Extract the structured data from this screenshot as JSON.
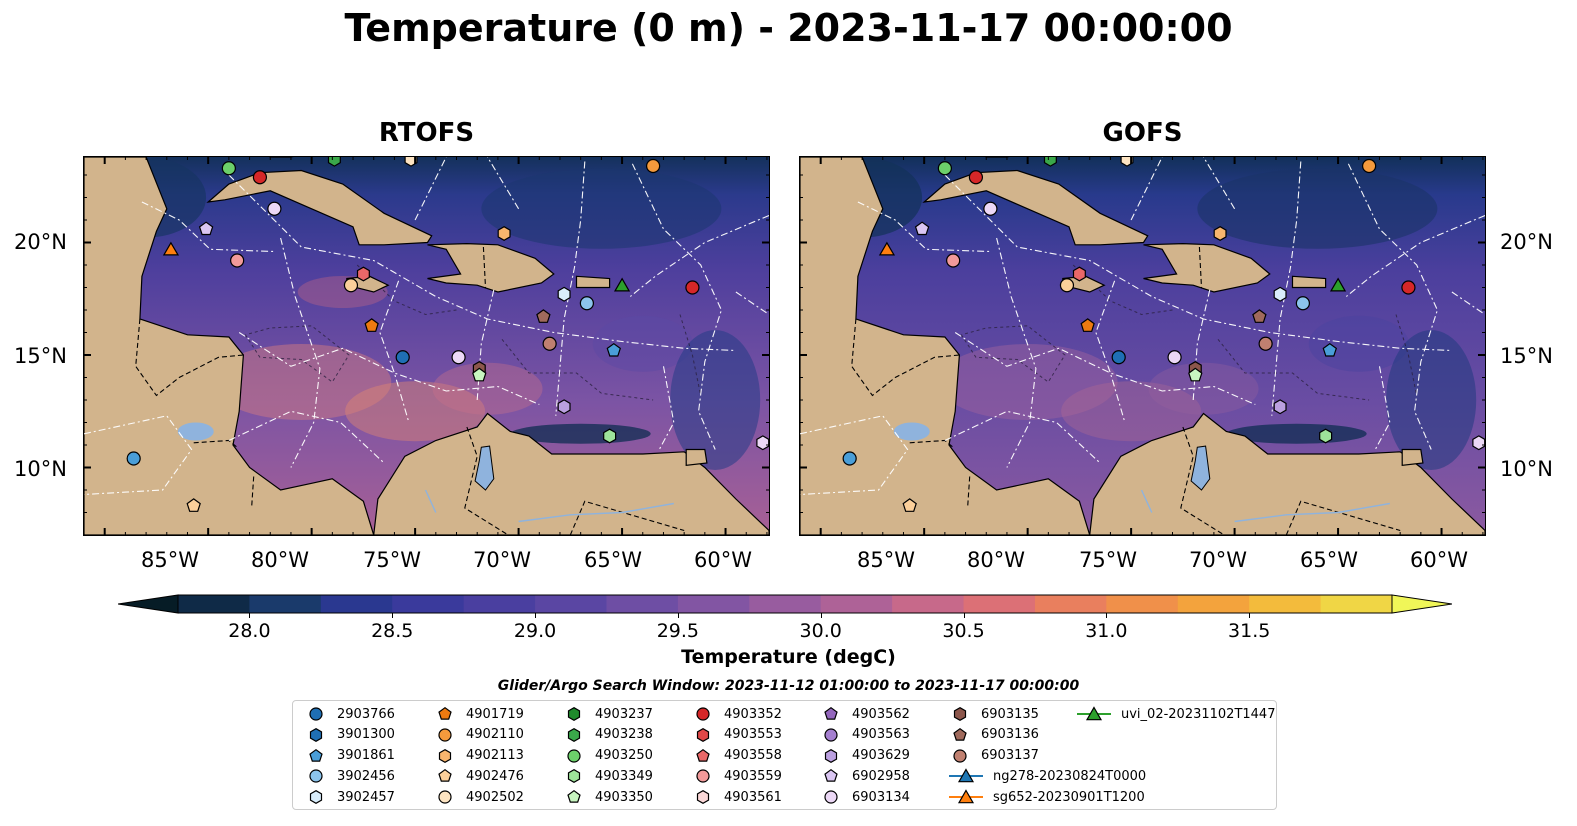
{
  "title": "Temperature (0 m) - 2023-11-17 00:00:00",
  "panels": [
    {
      "title": "RTOFS",
      "variant": "warm"
    },
    {
      "title": "GOFS",
      "variant": "cool"
    }
  ],
  "lat_ticks": [
    "20°N",
    "15°N",
    "10°N"
  ],
  "lon_ticks": [
    "85°W",
    "80°W",
    "75°W",
    "70°W",
    "65°W",
    "60°W"
  ],
  "colorbar": {
    "label": "Temperature (degC)",
    "ticks": [
      "28.0",
      "28.5",
      "29.0",
      "29.5",
      "30.0",
      "30.5",
      "31.0",
      "31.5"
    ],
    "colors": [
      "#0f2a47",
      "#1a3a6b",
      "#2a3890",
      "#3a3a9c",
      "#4a3fa0",
      "#5a46a3",
      "#6e4ea4",
      "#8255a3",
      "#985c9f",
      "#ae6297",
      "#c7698a",
      "#dc7076",
      "#e97f5e",
      "#f0904a",
      "#f3a33d",
      "#f3bb3c",
      "#f0d645"
    ],
    "under_color": "#061c26",
    "over_color": "#f0f658"
  },
  "search_window": "Glider/Argo Search Window: 2023-11-12 01:00:00 to 2023-11-17 00:00:00",
  "colors": {
    "land": "#d2b48c",
    "ocean_mid": "#5e4a9e",
    "ocean_dark": "#13315a",
    "lake": "#8fb3dd"
  },
  "legend": [
    {
      "label": "2903766",
      "shape": "circle",
      "color": "#1f6fb4"
    },
    {
      "label": "3901300",
      "shape": "hexagon",
      "color": "#1f6fb4"
    },
    {
      "label": "3901861",
      "shape": "pentagon",
      "color": "#4a9ed8"
    },
    {
      "label": "3902456",
      "shape": "circle",
      "color": "#8cc4ec"
    },
    {
      "label": "3902457",
      "shape": "hexagon",
      "color": "#d9edfb"
    },
    {
      "label": "4901719",
      "shape": "pentagon",
      "color": "#ee7a10"
    },
    {
      "label": "4902110",
      "shape": "circle",
      "color": "#f59a3c"
    },
    {
      "label": "4902113",
      "shape": "hexagon",
      "color": "#f8b56e"
    },
    {
      "label": "4902476",
      "shape": "pentagon",
      "color": "#fbcf9a"
    },
    {
      "label": "4902502",
      "shape": "circle",
      "color": "#fde4c2"
    },
    {
      "label": "4903237",
      "shape": "hexagon",
      "color": "#1f8a2c"
    },
    {
      "label": "4903238",
      "shape": "hexagon",
      "color": "#3aa84a"
    },
    {
      "label": "4903250",
      "shape": "circle",
      "color": "#6cd06a"
    },
    {
      "label": "4903349",
      "shape": "hexagon",
      "color": "#9ee39a"
    },
    {
      "label": "4903350",
      "shape": "pentagon",
      "color": "#c8f5c0"
    },
    {
      "label": "4903352",
      "shape": "circle",
      "color": "#d62728"
    },
    {
      "label": "4903553",
      "shape": "hexagon",
      "color": "#e04848"
    },
    {
      "label": "4903558",
      "shape": "pentagon",
      "color": "#ea6868"
    },
    {
      "label": "4903559",
      "shape": "circle",
      "color": "#f29a9a"
    },
    {
      "label": "4903561",
      "shape": "hexagon",
      "color": "#fbd8d8"
    },
    {
      "label": "4903562",
      "shape": "pentagon",
      "color": "#9467bd"
    },
    {
      "label": "4903563",
      "shape": "circle",
      "color": "#a57fd0"
    },
    {
      "label": "4903629",
      "shape": "hexagon",
      "color": "#bba0e0"
    },
    {
      "label": "6902958",
      "shape": "pentagon",
      "color": "#dac6f2"
    },
    {
      "label": "6903134",
      "shape": "circle",
      "color": "#ecd8f6"
    },
    {
      "label": "6903135",
      "shape": "hexagon",
      "color": "#8c564b"
    },
    {
      "label": "6903136",
      "shape": "pentagon",
      "color": "#a06a5c"
    },
    {
      "label": "6903137",
      "shape": "circle",
      "color": "#c08070"
    },
    {
      "label": "ng278-20230824T0000",
      "shape": "triangle",
      "color": "#1f77b4",
      "line": true
    },
    {
      "label": "sg652-20230901T1200",
      "shape": "triangle",
      "color": "#ff7f0e",
      "line": true
    },
    {
      "label": "uvi_02-20231102T1447",
      "shape": "triangle",
      "color": "#2ca02c",
      "line": true
    }
  ],
  "map_markers": [
    {
      "lon": -84.0,
      "lat": 23.3,
      "shape": "circle",
      "color": "#6cd06a"
    },
    {
      "lon": -82.5,
      "lat": 22.9,
      "shape": "circle",
      "color": "#d62728"
    },
    {
      "lon": -78.9,
      "lat": 23.7,
      "shape": "hexagon",
      "color": "#3aa84a"
    },
    {
      "lon": -75.2,
      "lat": 23.7,
      "shape": "hexagon",
      "color": "#fde4c2"
    },
    {
      "lon": -63.5,
      "lat": 23.4,
      "shape": "circle",
      "color": "#f59a3c"
    },
    {
      "lon": -86.8,
      "lat": 19.7,
      "shape": "triangle",
      "color": "#ff7f0e"
    },
    {
      "lon": -85.1,
      "lat": 20.6,
      "shape": "pentagon",
      "color": "#dac6f2"
    },
    {
      "lon": -83.6,
      "lat": 19.2,
      "shape": "circle",
      "color": "#f29a9a"
    },
    {
      "lon": -81.8,
      "lat": 21.5,
      "shape": "circle",
      "color": "#ecd8f6"
    },
    {
      "lon": -78.1,
      "lat": 18.1,
      "shape": "circle",
      "color": "#fbcf9a"
    },
    {
      "lon": -77.5,
      "lat": 18.6,
      "shape": "hexagon",
      "color": "#ea6868"
    },
    {
      "lon": -77.1,
      "lat": 16.3,
      "shape": "pentagon",
      "color": "#ee7a10"
    },
    {
      "lon": -75.6,
      "lat": 14.9,
      "shape": "circle",
      "color": "#1f6fb4"
    },
    {
      "lon": -72.9,
      "lat": 14.9,
      "shape": "circle",
      "color": "#ecd8f6"
    },
    {
      "lon": -71.9,
      "lat": 14.4,
      "shape": "hexagon",
      "color": "#8c564b"
    },
    {
      "lon": -71.9,
      "lat": 14.1,
      "shape": "pentagon",
      "color": "#c8f5c0"
    },
    {
      "lon": -70.7,
      "lat": 20.4,
      "shape": "hexagon",
      "color": "#f8b56e"
    },
    {
      "lon": -68.8,
      "lat": 16.7,
      "shape": "pentagon",
      "color": "#a06a5c"
    },
    {
      "lon": -68.5,
      "lat": 15.5,
      "shape": "circle",
      "color": "#c08070"
    },
    {
      "lon": -67.8,
      "lat": 17.7,
      "shape": "hexagon",
      "color": "#d9edfb"
    },
    {
      "lon": -66.7,
      "lat": 17.3,
      "shape": "circle",
      "color": "#8cc4ec"
    },
    {
      "lon": -65.0,
      "lat": 18.1,
      "shape": "triangle",
      "color": "#2ca02c"
    },
    {
      "lon": -61.6,
      "lat": 18.0,
      "shape": "circle",
      "color": "#d62728"
    },
    {
      "lon": -65.4,
      "lat": 15.2,
      "shape": "pentagon",
      "color": "#4a9ed8"
    },
    {
      "lon": -67.8,
      "lat": 12.7,
      "shape": "hexagon",
      "color": "#bba0e0"
    },
    {
      "lon": -65.6,
      "lat": 11.4,
      "shape": "hexagon",
      "color": "#9ee39a"
    },
    {
      "lon": -58.2,
      "lat": 11.1,
      "shape": "hexagon",
      "color": "#ecd8f6"
    },
    {
      "lon": -88.6,
      "lat": 10.4,
      "shape": "circle",
      "color": "#4a9ed8"
    },
    {
      "lon": -85.7,
      "lat": 8.3,
      "shape": "pentagon",
      "color": "#fbcf9a"
    }
  ]
}
